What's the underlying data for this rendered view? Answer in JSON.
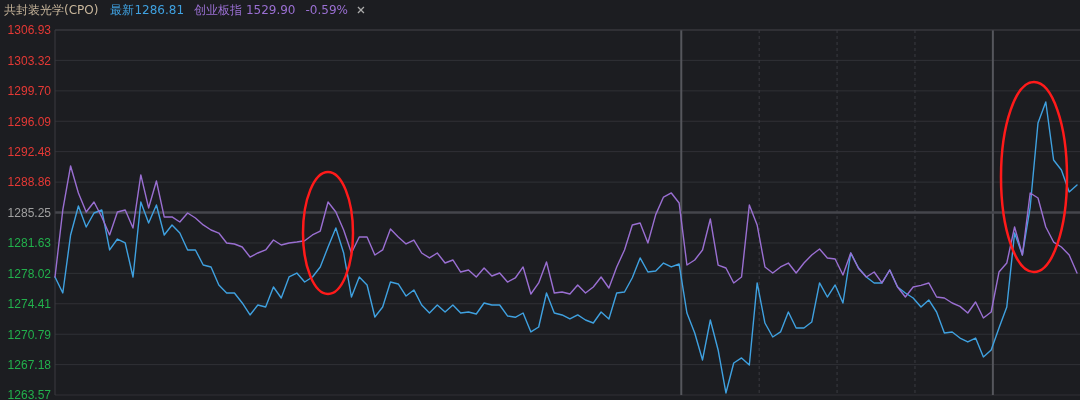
{
  "chart_data": {
    "type": "line",
    "title": "共封装光学(CPO)",
    "annotations": [
      "-0.59%"
    ],
    "grid": true,
    "tick_labels": "y",
    "categories": [
      null,
      null,
      null,
      null,
      null,
      null,
      null,
      null,
      null,
      null,
      null,
      null,
      null,
      null,
      null,
      null,
      null,
      null,
      null,
      null,
      null,
      null,
      null,
      null,
      null,
      null,
      null,
      null,
      null,
      null,
      null,
      null,
      null,
      null,
      null,
      null,
      null,
      null,
      null,
      null,
      null,
      null,
      null,
      null,
      null,
      null,
      null,
      null,
      null,
      null,
      null,
      null,
      null,
      null,
      null,
      null,
      null,
      null,
      null,
      null,
      null,
      null,
      null,
      null,
      null,
      null,
      null,
      null,
      null,
      null,
      null,
      null,
      null,
      null,
      null,
      null,
      null,
      null,
      null,
      null,
      null,
      null,
      null,
      null,
      null,
      null,
      null,
      null,
      null,
      null,
      null,
      null,
      null,
      null,
      null,
      null,
      null,
      null,
      null,
      null,
      null,
      null,
      null,
      null,
      null,
      null,
      null,
      null,
      null,
      null,
      null,
      null,
      null,
      null,
      null,
      null,
      null,
      null,
      null,
      null,
      null,
      null,
      null,
      null,
      null,
      null,
      null,
      null,
      null,
      null,
      null,
      null
    ],
    "ylim": [
      1263.57,
      1306.93
    ],
    "yticks": [
      1263.57,
      1267.18,
      1270.79,
      1274.41,
      1278.02,
      1281.63,
      1285.25,
      1288.86,
      1292.48,
      1296.09,
      {
        "value": 1299.7,
        "label": "1299.70"
      },
      1303.32,
      1306.93
    ],
    "ref_lines": [
      {
        "axis": "y",
        "value": 1285.25,
        "color": "#45464c"
      }
    ],
    "series": [
      {
        "name": "最新1286.81",
        "color": "#3fa1e0",
        "values": [
          1277.59,
          1275.69,
          1282.58,
          1286.02,
          1283.53,
          1285.19,
          1285.55,
          1280.8,
          1282.1,
          1281.63,
          1277.59,
          1286.5,
          1284.0,
          1286.14,
          1282.58,
          1283.77,
          1282.81,
          1280.8,
          1280.8,
          1279.01,
          1278.78,
          1276.64,
          1275.69,
          1275.69,
          1274.5,
          1273.08,
          1274.26,
          1274.02,
          1276.4,
          1275.09,
          1277.59,
          1278.06,
          1276.99,
          1277.59,
          1278.78,
          1281.15,
          1283.41,
          1280.44,
          1275.21,
          1277.59,
          1276.64,
          1272.84,
          1274.02,
          1276.99,
          1276.76,
          1275.33,
          1276.05,
          1274.26,
          1273.31,
          1274.26,
          1273.43,
          1274.26,
          1273.31,
          1273.43,
          1273.19,
          1274.5,
          1274.26,
          1274.26,
          1272.96,
          1272.8,
          1273.31,
          1271.06,
          1271.65,
          1275.69,
          1273.31,
          1273.08,
          1272.6,
          1273.08,
          1272.48,
          1272.12,
          1273.43,
          1272.6,
          1275.69,
          1275.81,
          1277.5,
          1279.85,
          1278.18,
          1278.3,
          1279.25,
          1278.78,
          1279.13,
          1273.31,
          1270.94,
          1267.73,
          1272.48,
          1268.92,
          1263.81,
          1267.37,
          1267.97,
          1267.14,
          1276.88,
          1272.12,
          1270.46,
          1271.06,
          1273.43,
          1271.53,
          1271.53,
          1272.24,
          1276.88,
          1275.21,
          1276.64,
          1274.5,
          1280.44,
          1278.66,
          1277.59,
          1276.88,
          1276.88,
          1278.42,
          1276.4,
          1275.69,
          1275.09,
          1274.02,
          1274.86,
          1273.43,
          1270.94,
          1271.06,
          1270.34,
          1269.87,
          1270.34,
          1268.09,
          1268.92,
          1271.53,
          1274.02,
          1282.81,
          1280.2,
          1285.9,
          1295.88,
          1298.38,
          1291.49,
          1290.3,
          1287.69,
          1288.52
        ]
      },
      {
        "name": "创业板指 1529.90",
        "color": "#9a6fd2",
        "values": [
          1277.59,
          1285.55,
          1290.78,
          1287.57,
          1285.31,
          1286.5,
          1284.72,
          1282.58,
          1285.31,
          1285.55,
          1283.41,
          1289.71,
          1285.79,
          1288.99,
          1284.72,
          1284.72,
          1284.12,
          1285.19,
          1284.6,
          1283.77,
          1283.17,
          1282.81,
          1281.63,
          1281.51,
          1281.15,
          1279.96,
          1280.44,
          1280.8,
          1281.98,
          1281.39,
          1281.63,
          1281.74,
          1281.9,
          1282.58,
          1283.05,
          1286.5,
          1285.31,
          1283.17,
          1280.44,
          1282.34,
          1282.34,
          1280.2,
          1280.8,
          1283.29,
          1282.34,
          1281.51,
          1281.98,
          1280.44,
          1279.85,
          1280.44,
          1279.25,
          1279.61,
          1278.18,
          1278.42,
          1277.59,
          1278.66,
          1277.71,
          1278.06,
          1276.99,
          1277.47,
          1278.78,
          1275.57,
          1276.88,
          1279.37,
          1275.69,
          1275.81,
          1275.57,
          1276.64,
          1275.69,
          1276.4,
          1277.59,
          1276.28,
          1278.78,
          1280.8,
          1283.77,
          1284.0,
          1281.63,
          1285.0,
          1287.09,
          1287.57,
          1286.38,
          1279.01,
          1279.61,
          1280.8,
          1284.48,
          1279.0,
          1278.66,
          1276.88,
          1277.59,
          1286.14,
          1283.77,
          1278.78,
          1278.06,
          1278.78,
          1279.25,
          1278.06,
          1279.25,
          1280.2,
          1280.91,
          1279.85,
          1279.73,
          1277.83,
          1280.44,
          1278.6,
          1277.59,
          1278.18,
          1276.88,
          1278.42,
          1276.4,
          1275.21,
          1276.4,
          1276.6,
          1276.88,
          1275.21,
          1275.09,
          1274.5,
          1274.1,
          1273.31,
          1274.62,
          1272.72,
          1273.43,
          1278.18,
          1279.25,
          1283.53,
          1280.2,
          1287.57,
          1286.97,
          1283.53,
          1281.74,
          1281.15,
          1280.2,
          1278.06
        ]
      }
    ]
  }
}
